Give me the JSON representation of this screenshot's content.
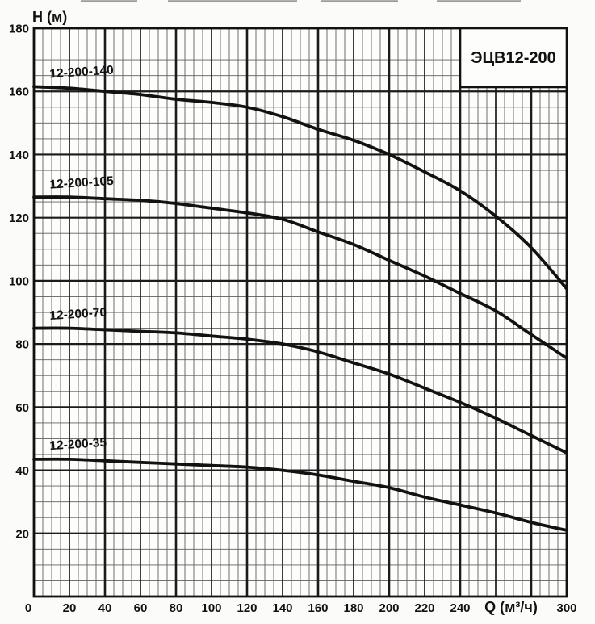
{
  "title_box": {
    "text": "ЭЦВ12-200"
  },
  "axes": {
    "y": {
      "title": "H (м)",
      "min": 0,
      "max": 180,
      "major_step": 20,
      "minor_step": 5,
      "tick_labels": [
        180,
        160,
        140,
        120,
        100,
        80,
        60,
        40,
        20
      ]
    },
    "x": {
      "title": "Q (м³/ч)",
      "min": 0,
      "max": 300,
      "major_step": 20,
      "minor_step": 5,
      "numeric_ticks": [
        0,
        20,
        40,
        60,
        80,
        100,
        120,
        140,
        160,
        180,
        200,
        220,
        240,
        300
      ],
      "title_position_q": 268
    }
  },
  "chart_data": {
    "type": "line",
    "title": "ЭЦВ12-200",
    "xlabel": "Q (м³/ч)",
    "ylabel": "H (м)",
    "xlim": [
      0,
      300
    ],
    "ylim": [
      0,
      180
    ],
    "grid": "major every 20 units, minor every 5 units, both axes",
    "legend": "inline labels above left end of each curve",
    "x": [
      0,
      20,
      40,
      60,
      80,
      100,
      120,
      140,
      160,
      180,
      200,
      220,
      240,
      260,
      280,
      300
    ],
    "series": [
      {
        "name": "12-200-140",
        "values": [
          161.5,
          161,
          160,
          159,
          157.5,
          156.5,
          155,
          152,
          148,
          144.5,
          140,
          134.5,
          128.5,
          120.5,
          110.5,
          97.5
        ],
        "label_at": {
          "q": 9,
          "h": 164.3
        }
      },
      {
        "name": "12-200-105",
        "values": [
          126.5,
          126.5,
          126,
          125.5,
          124.5,
          123,
          121.5,
          119.5,
          115.5,
          111.5,
          106.5,
          101.5,
          96,
          90.5,
          83,
          75.5
        ],
        "label_at": {
          "q": 9,
          "h": 129.2
        }
      },
      {
        "name": "12-200-70",
        "values": [
          85,
          85,
          84.5,
          84,
          83.5,
          82.5,
          81.5,
          80,
          77.5,
          74,
          70.5,
          66,
          61.5,
          56.5,
          51,
          45.5
        ],
        "label_at": {
          "q": 9,
          "h": 87.7
        }
      },
      {
        "name": "12-200-35",
        "values": [
          43.5,
          43.5,
          43,
          42.5,
          42,
          41.5,
          41,
          40,
          38.5,
          36.5,
          34.5,
          31.5,
          29,
          26.5,
          23.5,
          21
        ],
        "label_at": {
          "q": 9,
          "h": 46.5
        }
      }
    ]
  },
  "colors": {
    "curve": "#121212",
    "grid_major": "#1b1b1b",
    "grid_minor": "#5e5e5e",
    "frame": "#111111",
    "plot_background": "#fdfdfc",
    "page_background": "#fbfbf9"
  }
}
